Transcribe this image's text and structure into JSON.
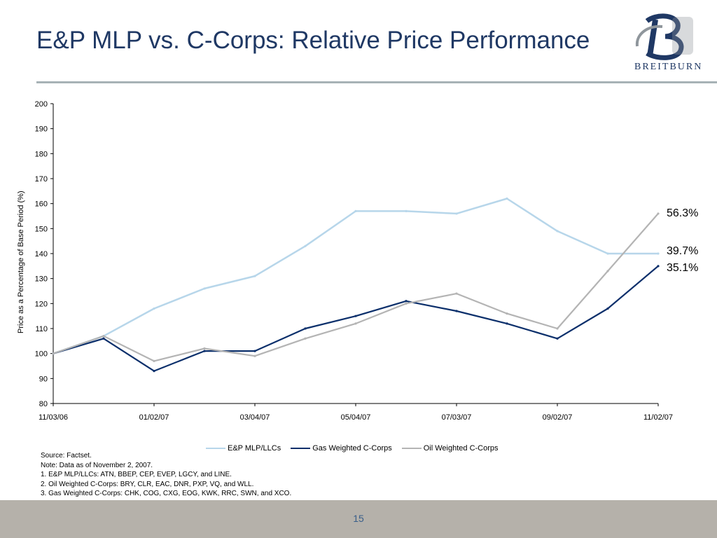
{
  "slide": {
    "title": "E&P MLP vs. C-Corps: Relative Price Performance",
    "logo_text": "BREITBURN",
    "page_number": "15"
  },
  "chart_data": {
    "type": "line",
    "x": [
      "11/03/06",
      "12/02/06",
      "01/02/07",
      "02/02/07",
      "03/04/07",
      "04/04/07",
      "05/04/07",
      "06/03/07",
      "07/03/07",
      "08/02/07",
      "09/02/07",
      "10/02/07",
      "11/02/07"
    ],
    "xticks": [
      "11/03/06",
      "01/02/07",
      "03/04/07",
      "05/04/07",
      "07/03/07",
      "09/02/07",
      "11/02/07"
    ],
    "ylabel": "Price as a Percentage of Base Period (%)",
    "ylim": [
      80,
      200
    ],
    "yticks": [
      80,
      90,
      100,
      110,
      120,
      130,
      140,
      150,
      160,
      170,
      180,
      190,
      200
    ],
    "grid": false,
    "legend_position": "bottom",
    "series": [
      {
        "name": "E&P MLP/LLCs",
        "color": "#b7d6ea",
        "values": [
          100,
          107,
          118,
          126,
          131,
          143,
          157,
          157,
          156,
          162,
          149,
          140,
          140
        ]
      },
      {
        "name": "Gas Weighted C-Corps",
        "color": "#0b2f6b",
        "values": [
          100,
          106,
          93,
          101,
          101,
          110,
          115,
          121,
          117,
          112,
          106,
          118,
          135
        ]
      },
      {
        "name": "Oil Weighted C-Corps",
        "color": "#b4b4b4",
        "values": [
          100,
          107,
          97,
          102,
          99,
          106,
          112,
          120,
          124,
          116,
          110,
          133,
          156
        ]
      }
    ],
    "annotations": [
      {
        "text": "56.3%",
        "color": "#a9a9a9"
      },
      {
        "text": "39.7%",
        "color": "#3c6f9e"
      },
      {
        "text": "35.1%",
        "color": "#0b2f6b"
      }
    ]
  },
  "notes": [
    "Source: Factset.",
    "Note: Data as of November 2, 2007.",
    "1. E&P MLP/LLCs: ATN, BBEP, CEP, EVEP, LGCY, and LINE.",
    "2. Oil Weighted C-Corps: BRY, CLR, EAC, DNR, PXP, VQ, and WLL.",
    "3. Gas Weighted C-Corps: CHK, COG, CXG, EOG, KWK, RRC, SWN, and XCO."
  ]
}
